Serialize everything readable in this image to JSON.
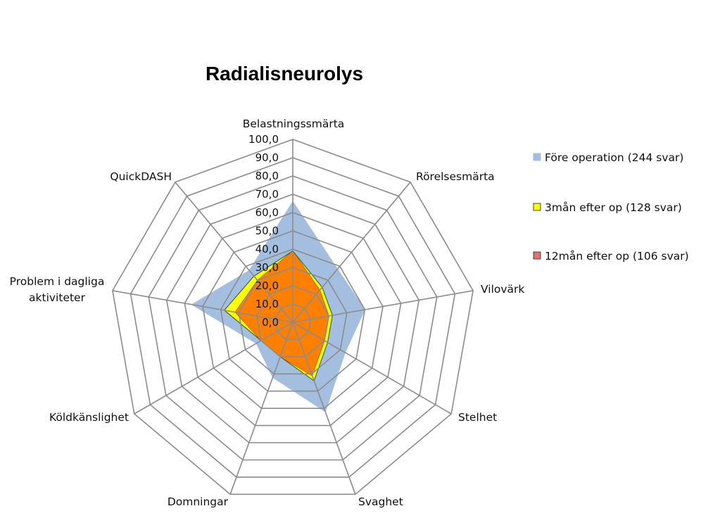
{
  "chart_data": {
    "type": "radar",
    "title": "Radialisneurolys",
    "categories": [
      "Belastningssmärta",
      "Rörelsesmärta",
      "Vilovärk",
      "Stelhet",
      "Svaghet",
      "Domningar",
      "Köldkänslighet",
      "Problem i dagliga aktiviteter",
      "QuickDASH"
    ],
    "rlim": [
      0,
      100
    ],
    "ticks": [
      "0,0",
      "10,0",
      "20,0",
      "30,0",
      "40,0",
      "50,0",
      "60,0",
      "70,0",
      "80,0",
      "90,0",
      "100,0"
    ],
    "legend_position": "right",
    "series": [
      {
        "name": "Före operation (244 svar)",
        "color": "#a4bedf",
        "stroke": "#a4bedf",
        "values": [
          66,
          38,
          40,
          33,
          52,
          32,
          23,
          56,
          37
        ]
      },
      {
        "name": "3mån efter op (128 svar)",
        "color": "#ffff00",
        "stroke": "#555555",
        "values": [
          39,
          25,
          22,
          22,
          34,
          20,
          20,
          38,
          33
        ]
      },
      {
        "name": "12mån efter op (106 svar)",
        "color": "#e6706f",
        "stroke": "#555555",
        "values": [
          39,
          23,
          20,
          20,
          31,
          20,
          20,
          32,
          30
        ]
      }
    ],
    "overlap_color": "#ff7f00"
  }
}
